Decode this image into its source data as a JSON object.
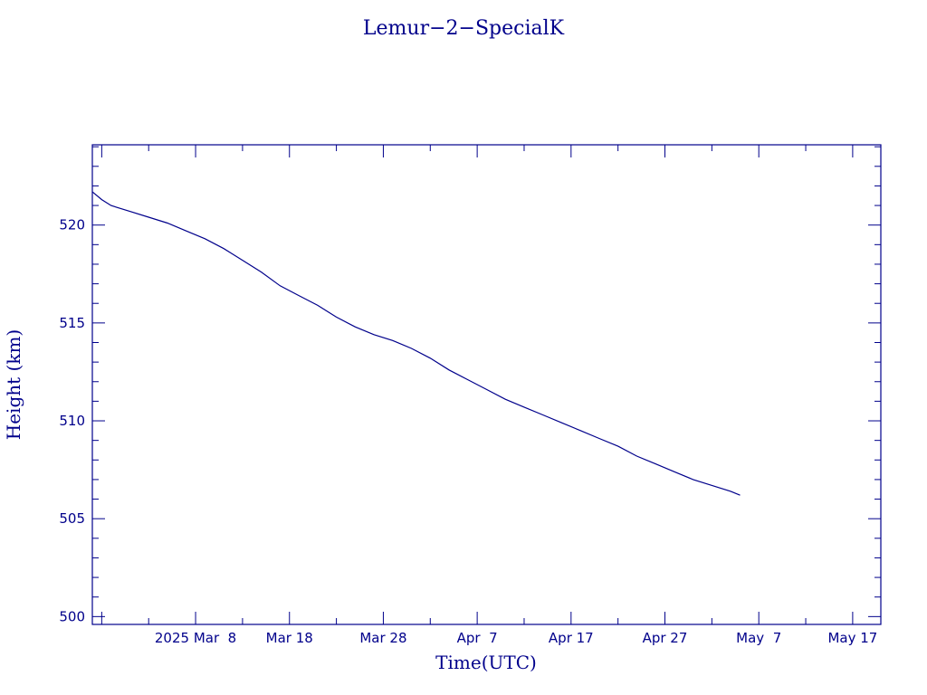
{
  "chart_data": {
    "type": "line",
    "title": "Lemur−2−SpecialK",
    "xlabel": "Time(UTC)",
    "ylabel": "Height (km)",
    "x_type": "date",
    "xlim": [
      "2025-02-25",
      "2025-05-20"
    ],
    "ylim": [
      499.6,
      524.1
    ],
    "y_ticks": [
      500,
      505,
      510,
      515,
      520
    ],
    "x_ticks": [
      {
        "date": "2025-03-08",
        "label": "2025 Mar  8"
      },
      {
        "date": "2025-03-18",
        "label": "Mar 18"
      },
      {
        "date": "2025-03-28",
        "label": "Mar 28"
      },
      {
        "date": "2025-04-07",
        "label": "Apr  7"
      },
      {
        "date": "2025-04-17",
        "label": "Apr 17"
      },
      {
        "date": "2025-04-27",
        "label": "Apr 27"
      },
      {
        "date": "2025-05-07",
        "label": "May  7"
      },
      {
        "date": "2025-05-17",
        "label": "May 17"
      }
    ],
    "grid": false,
    "color": "#00008b",
    "series": [
      {
        "x": [
          "2025-02-25",
          "2025-02-26",
          "2025-02-27",
          "2025-03-01",
          "2025-03-03",
          "2025-03-05",
          "2025-03-07",
          "2025-03-09",
          "2025-03-11",
          "2025-03-13",
          "2025-03-15",
          "2025-03-17",
          "2025-03-19",
          "2025-03-21",
          "2025-03-22",
          "2025-03-23",
          "2025-03-25",
          "2025-03-27",
          "2025-03-29",
          "2025-03-31",
          "2025-04-02",
          "2025-04-04",
          "2025-04-06",
          "2025-04-08",
          "2025-04-10",
          "2025-04-12",
          "2025-04-14",
          "2025-04-16",
          "2025-04-18",
          "2025-04-20",
          "2025-04-22",
          "2025-04-24",
          "2025-04-26",
          "2025-04-28",
          "2025-04-30",
          "2025-05-02",
          "2025-05-04",
          "2025-05-05"
        ],
        "y": [
          521.7,
          521.3,
          521.0,
          520.7,
          520.4,
          520.1,
          519.7,
          519.3,
          518.8,
          518.2,
          517.6,
          516.9,
          516.4,
          515.9,
          515.6,
          515.3,
          514.8,
          514.4,
          514.1,
          513.7,
          513.2,
          512.6,
          512.1,
          511.6,
          511.1,
          510.7,
          510.3,
          509.9,
          509.5,
          509.1,
          508.7,
          508.2,
          507.8,
          507.4,
          507.0,
          506.7,
          506.4,
          506.2
        ]
      }
    ]
  }
}
